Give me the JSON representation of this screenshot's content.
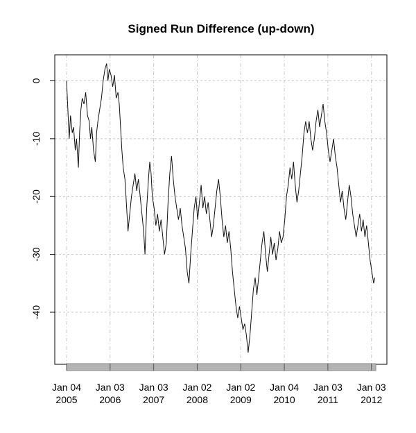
{
  "chart_data": {
    "type": "line",
    "title": "Signed Run Difference (up-down)",
    "xlabel": "",
    "ylabel": "",
    "ylim": [
      -49,
      4.5
    ],
    "yticks": [
      0,
      -10,
      -20,
      -30,
      -40
    ],
    "ytick_labels": [
      "0",
      "-10",
      "-20",
      "-30",
      "-40"
    ],
    "xlim": [
      2005.0,
      2012.1
    ],
    "xticks": [
      {
        "x": 2005.0,
        "line1": "Jan 04",
        "line2": "2005"
      },
      {
        "x": 2006.0,
        "line1": "Jan 03",
        "line2": "2006"
      },
      {
        "x": 2007.0,
        "line1": "Jan 03",
        "line2": "2007"
      },
      {
        "x": 2008.0,
        "line1": "Jan 02",
        "line2": "2008"
      },
      {
        "x": 2009.0,
        "line1": "Jan 02",
        "line2": "2009"
      },
      {
        "x": 2010.0,
        "line1": "Jan 04",
        "line2": "2010"
      },
      {
        "x": 2011.0,
        "line1": "Jan 03",
        "line2": "2011"
      },
      {
        "x": 2012.0,
        "line1": "Jan 03",
        "line2": "2012"
      }
    ],
    "grid": true,
    "series": [
      {
        "values": [
          [
            2005.0,
            0
          ],
          [
            2005.03,
            -5
          ],
          [
            2005.06,
            -10
          ],
          [
            2005.09,
            -6
          ],
          [
            2005.13,
            -9
          ],
          [
            2005.16,
            -8
          ],
          [
            2005.2,
            -12
          ],
          [
            2005.23,
            -10
          ],
          [
            2005.27,
            -15
          ],
          [
            2005.3,
            -9
          ],
          [
            2005.33,
            -5
          ],
          [
            2005.36,
            -3
          ],
          [
            2005.4,
            -4
          ],
          [
            2005.44,
            -2
          ],
          [
            2005.48,
            -6
          ],
          [
            2005.52,
            -7
          ],
          [
            2005.55,
            -10
          ],
          [
            2005.58,
            -8
          ],
          [
            2005.62,
            -12
          ],
          [
            2005.66,
            -14
          ],
          [
            2005.69,
            -9
          ],
          [
            2005.72,
            -7
          ],
          [
            2005.76,
            -5
          ],
          [
            2005.8,
            -3
          ],
          [
            2005.84,
            0
          ],
          [
            2005.88,
            2
          ],
          [
            2005.92,
            3
          ],
          [
            2005.95,
            0
          ],
          [
            2005.98,
            2
          ],
          [
            2006.02,
            1
          ],
          [
            2006.06,
            -1
          ],
          [
            2006.1,
            1
          ],
          [
            2006.14,
            -3
          ],
          [
            2006.18,
            -2
          ],
          [
            2006.21,
            -4
          ],
          [
            2006.24,
            -8
          ],
          [
            2006.27,
            -12
          ],
          [
            2006.3,
            -15
          ],
          [
            2006.34,
            -17
          ],
          [
            2006.38,
            -22
          ],
          [
            2006.41,
            -26
          ],
          [
            2006.45,
            -23
          ],
          [
            2006.49,
            -20
          ],
          [
            2006.53,
            -18
          ],
          [
            2006.57,
            -16
          ],
          [
            2006.61,
            -19
          ],
          [
            2006.65,
            -17
          ],
          [
            2006.69,
            -20
          ],
          [
            2006.73,
            -23
          ],
          [
            2006.77,
            -26
          ],
          [
            2006.8,
            -30
          ],
          [
            2006.84,
            -22
          ],
          [
            2006.88,
            -17
          ],
          [
            2006.91,
            -14
          ],
          [
            2006.94,
            -16
          ],
          [
            2006.97,
            -20
          ],
          [
            2007.01,
            -22
          ],
          [
            2007.05,
            -25
          ],
          [
            2007.09,
            -23
          ],
          [
            2007.13,
            -26
          ],
          [
            2007.17,
            -24
          ],
          [
            2007.21,
            -27
          ],
          [
            2007.25,
            -30
          ],
          [
            2007.29,
            -28
          ],
          [
            2007.33,
            -21
          ],
          [
            2007.37,
            -16
          ],
          [
            2007.41,
            -13
          ],
          [
            2007.45,
            -17
          ],
          [
            2007.49,
            -20
          ],
          [
            2007.53,
            -22
          ],
          [
            2007.57,
            -24
          ],
          [
            2007.61,
            -22
          ],
          [
            2007.65,
            -25
          ],
          [
            2007.69,
            -27
          ],
          [
            2007.73,
            -29
          ],
          [
            2007.77,
            -33
          ],
          [
            2007.81,
            -35
          ],
          [
            2007.85,
            -30
          ],
          [
            2007.89,
            -26
          ],
          [
            2007.93,
            -22
          ],
          [
            2007.97,
            -20
          ],
          [
            2008.01,
            -24
          ],
          [
            2008.05,
            -21
          ],
          [
            2008.09,
            -18
          ],
          [
            2008.13,
            -22
          ],
          [
            2008.17,
            -20
          ],
          [
            2008.21,
            -23
          ],
          [
            2008.25,
            -21
          ],
          [
            2008.29,
            -24
          ],
          [
            2008.33,
            -27
          ],
          [
            2008.37,
            -25
          ],
          [
            2008.41,
            -22
          ],
          [
            2008.45,
            -19
          ],
          [
            2008.49,
            -17
          ],
          [
            2008.53,
            -20
          ],
          [
            2008.57,
            -24
          ],
          [
            2008.61,
            -27
          ],
          [
            2008.65,
            -25
          ],
          [
            2008.69,
            -28
          ],
          [
            2008.73,
            -26
          ],
          [
            2008.77,
            -29
          ],
          [
            2008.81,
            -33
          ],
          [
            2008.85,
            -36
          ],
          [
            2008.89,
            -39
          ],
          [
            2008.93,
            -41
          ],
          [
            2008.97,
            -39
          ],
          [
            2009.01,
            -41
          ],
          [
            2009.05,
            -43
          ],
          [
            2009.09,
            -42
          ],
          [
            2009.13,
            -44
          ],
          [
            2009.17,
            -47
          ],
          [
            2009.21,
            -44
          ],
          [
            2009.25,
            -40
          ],
          [
            2009.29,
            -36
          ],
          [
            2009.33,
            -34
          ],
          [
            2009.37,
            -37
          ],
          [
            2009.41,
            -34
          ],
          [
            2009.45,
            -31
          ],
          [
            2009.49,
            -28
          ],
          [
            2009.53,
            -26
          ],
          [
            2009.57,
            -30
          ],
          [
            2009.61,
            -33
          ],
          [
            2009.65,
            -30
          ],
          [
            2009.69,
            -27
          ],
          [
            2009.73,
            -30
          ],
          [
            2009.77,
            -28
          ],
          [
            2009.81,
            -31
          ],
          [
            2009.85,
            -29
          ],
          [
            2009.89,
            -26
          ],
          [
            2009.93,
            -28
          ],
          [
            2009.97,
            -27
          ],
          [
            2010.01,
            -24
          ],
          [
            2010.05,
            -20
          ],
          [
            2010.09,
            -18
          ],
          [
            2010.13,
            -15
          ],
          [
            2010.17,
            -17
          ],
          [
            2010.21,
            -14
          ],
          [
            2010.25,
            -18
          ],
          [
            2010.29,
            -21
          ],
          [
            2010.33,
            -19
          ],
          [
            2010.37,
            -16
          ],
          [
            2010.41,
            -13
          ],
          [
            2010.45,
            -9
          ],
          [
            2010.49,
            -7
          ],
          [
            2010.53,
            -9
          ],
          [
            2010.57,
            -7
          ],
          [
            2010.61,
            -10
          ],
          [
            2010.65,
            -12
          ],
          [
            2010.69,
            -10
          ],
          [
            2010.73,
            -7
          ],
          [
            2010.77,
            -5
          ],
          [
            2010.81,
            -8
          ],
          [
            2010.85,
            -6
          ],
          [
            2010.89,
            -4
          ],
          [
            2010.93,
            -7
          ],
          [
            2010.97,
            -9
          ],
          [
            2011.01,
            -12
          ],
          [
            2011.05,
            -14
          ],
          [
            2011.09,
            -12
          ],
          [
            2011.13,
            -10
          ],
          [
            2011.17,
            -13
          ],
          [
            2011.21,
            -15
          ],
          [
            2011.25,
            -18
          ],
          [
            2011.29,
            -21
          ],
          [
            2011.33,
            -19
          ],
          [
            2011.37,
            -22
          ],
          [
            2011.41,
            -24
          ],
          [
            2011.45,
            -21
          ],
          [
            2011.49,
            -18
          ],
          [
            2011.53,
            -20
          ],
          [
            2011.57,
            -23
          ],
          [
            2011.61,
            -25
          ],
          [
            2011.65,
            -27
          ],
          [
            2011.69,
            -25
          ],
          [
            2011.73,
            -23
          ],
          [
            2011.77,
            -26
          ],
          [
            2011.81,
            -24
          ],
          [
            2011.85,
            -27
          ],
          [
            2011.89,
            -25
          ],
          [
            2011.93,
            -28
          ],
          [
            2011.97,
            -31
          ],
          [
            2012.01,
            -33
          ],
          [
            2012.05,
            -35
          ],
          [
            2012.08,
            -34
          ]
        ]
      }
    ]
  }
}
